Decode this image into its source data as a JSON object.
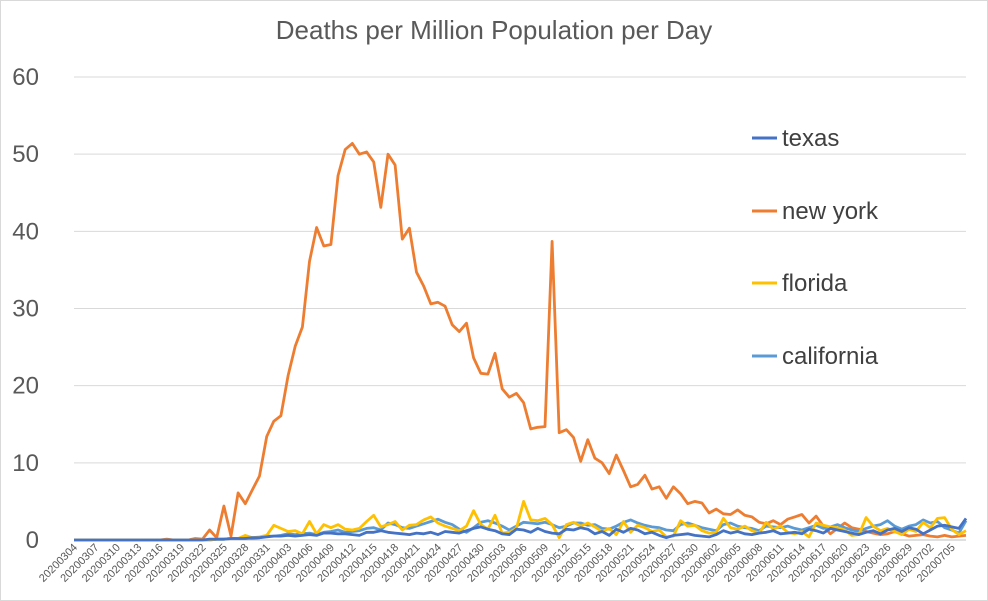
{
  "chart_data": {
    "type": "line",
    "title": "Deaths per Million Population per Day",
    "xlabel": "",
    "ylabel": "",
    "ylim": [
      0,
      60
    ],
    "yticks": [
      0,
      10,
      20,
      30,
      40,
      50,
      60
    ],
    "grid": "horizontal",
    "legend_position": "right",
    "x": [
      "20200304",
      "20200305",
      "20200306",
      "20200307",
      "20200308",
      "20200309",
      "20200310",
      "20200311",
      "20200312",
      "20200313",
      "20200314",
      "20200315",
      "20200316",
      "20200317",
      "20200318",
      "20200319",
      "20200320",
      "20200321",
      "20200322",
      "20200323",
      "20200324",
      "20200325",
      "20200326",
      "20200327",
      "20200328",
      "20200329",
      "20200330",
      "20200331",
      "20200401",
      "20200402",
      "20200403",
      "20200404",
      "20200405",
      "20200406",
      "20200407",
      "20200408",
      "20200409",
      "20200410",
      "20200411",
      "20200412",
      "20200413",
      "20200414",
      "20200415",
      "20200416",
      "20200417",
      "20200418",
      "20200419",
      "20200420",
      "20200421",
      "20200422",
      "20200423",
      "20200424",
      "20200425",
      "20200426",
      "20200427",
      "20200428",
      "20200429",
      "20200430",
      "20200501",
      "20200502",
      "20200503",
      "20200504",
      "20200505",
      "20200506",
      "20200507",
      "20200508",
      "20200509",
      "20200510",
      "20200511",
      "20200512",
      "20200513",
      "20200514",
      "20200515",
      "20200516",
      "20200517",
      "20200518",
      "20200519",
      "20200520",
      "20200521",
      "20200522",
      "20200523",
      "20200524",
      "20200525",
      "20200526",
      "20200527",
      "20200528",
      "20200529",
      "20200530",
      "20200531",
      "20200601",
      "20200602",
      "20200603",
      "20200604",
      "20200605",
      "20200606",
      "20200607",
      "20200608",
      "20200609",
      "20200610",
      "20200611",
      "20200612",
      "20200613",
      "20200614",
      "20200615",
      "20200616",
      "20200617",
      "20200618",
      "20200619",
      "20200620",
      "20200621",
      "20200622",
      "20200623",
      "20200624",
      "20200625",
      "20200626",
      "20200627",
      "20200628",
      "20200629",
      "20200630",
      "20200701",
      "20200702",
      "20200703",
      "20200704",
      "20200705",
      "20200706",
      "20200707"
    ],
    "xtick_labels": [
      "20200304",
      "20200307",
      "20200310",
      "20200313",
      "20200316",
      "20200319",
      "20200322",
      "20200325",
      "20200328",
      "20200331",
      "20200403",
      "20200406",
      "20200409",
      "20200412",
      "20200415",
      "20200418",
      "20200421",
      "20200424",
      "20200427",
      "20200430",
      "20200503",
      "20200506",
      "20200509",
      "20200512",
      "20200515",
      "20200518",
      "20200521",
      "20200524",
      "20200527",
      "20200530",
      "20200602",
      "20200605",
      "20200608",
      "20200611",
      "20200614",
      "20200617",
      "20200620",
      "20200623",
      "20200626",
      "20200629",
      "20200702",
      "20200705"
    ],
    "series": [
      {
        "name": "texas",
        "color": "#4472c4",
        "values": [
          0,
          0,
          0,
          0,
          0,
          0,
          0,
          0,
          0,
          0,
          0,
          0,
          0,
          0,
          0,
          0,
          0,
          0,
          0,
          0.1,
          0.1,
          0.1,
          0.2,
          0.2,
          0.2,
          0.3,
          0.3,
          0.4,
          0.5,
          0.5,
          0.6,
          0.5,
          0.6,
          0.7,
          0.6,
          0.9,
          0.9,
          0.8,
          0.8,
          0.7,
          0.6,
          1.0,
          1.0,
          1.2,
          1.0,
          0.9,
          0.8,
          0.7,
          0.9,
          0.8,
          1.0,
          0.7,
          1.1,
          1.0,
          0.9,
          1.2,
          1.5,
          1.7,
          1.4,
          1.2,
          0.8,
          0.7,
          1.4,
          1.3,
          1.0,
          1.5,
          1.1,
          0.9,
          0.8,
          1.4,
          1.3,
          1.6,
          1.4,
          0.8,
          1.1,
          0.6,
          1.4,
          1.0,
          1.5,
          1.3,
          0.8,
          1.0,
          0.6,
          0.3,
          0.6,
          0.7,
          0.8,
          0.6,
          0.5,
          0.4,
          0.7,
          1.2,
          0.9,
          1.1,
          0.8,
          0.7,
          0.9,
          1.0,
          1.2,
          0.8,
          0.9,
          1.0,
          0.8,
          1.4,
          1.2,
          0.9,
          1.5,
          1.3,
          1.1,
          0.9,
          0.7,
          1.0,
          1.2,
          0.8,
          1.3,
          1.5,
          1.1,
          1.6,
          1.4,
          0.8,
          1.3,
          1.8,
          1.9,
          1.7,
          1.5,
          2.8
        ]
      },
      {
        "name": "new york",
        "color": "#ed7d31",
        "values": [
          0,
          0,
          0,
          0,
          0,
          0,
          0,
          0,
          0,
          0,
          0,
          0,
          0,
          0.1,
          0,
          0,
          0,
          0.2,
          0.1,
          1.3,
          0.3,
          4.4,
          0.5,
          6.1,
          4.7,
          6.5,
          8.3,
          13.4,
          15.4,
          16.1,
          21.3,
          25.1,
          27.6,
          36.1,
          40.5,
          38.1,
          38.3,
          47.2,
          50.6,
          51.4,
          50.0,
          50.3,
          49.0,
          43.1,
          50.0,
          48.6,
          39.0,
          40.4,
          34.7,
          32.9,
          30.6,
          30.8,
          30.3,
          27.9,
          27.0,
          28.1,
          23.6,
          21.6,
          21.5,
          24.2,
          19.6,
          18.5,
          19.0,
          17.8,
          14.4,
          14.6,
          14.7,
          38.7,
          13.9,
          14.3,
          13.3,
          10.2,
          13.0,
          10.6,
          10.0,
          8.6,
          11.0,
          9.0,
          6.9,
          7.2,
          8.4,
          6.6,
          6.9,
          5.4,
          6.9,
          6.0,
          4.7,
          5.0,
          4.8,
          3.5,
          4.0,
          3.4,
          3.3,
          3.9,
          3.2,
          3.0,
          2.3,
          2.1,
          2.5,
          2.0,
          2.7,
          3.0,
          3.3,
          2.2,
          3.1,
          1.8,
          0.8,
          1.5,
          2.2,
          1.6,
          1.4,
          1.1,
          0.9,
          0.7,
          0.8,
          1.1,
          0.8,
          0.5,
          0.6,
          0.7,
          0.5,
          0.4,
          0.6,
          0.4,
          0.5,
          0.6
        ]
      },
      {
        "name": "florida",
        "color": "#ffc000",
        "values": [
          0,
          0,
          0,
          0,
          0,
          0,
          0,
          0,
          0,
          0,
          0,
          0,
          0,
          0,
          0,
          0,
          0,
          0,
          0,
          0,
          0.1,
          0.1,
          0.2,
          0.2,
          0.6,
          0.3,
          0.4,
          0.6,
          1.9,
          1.5,
          1.1,
          1.2,
          0.8,
          2.4,
          0.8,
          2.0,
          1.6,
          2.0,
          1.4,
          1.3,
          1.5,
          2.4,
          3.2,
          1.7,
          2.0,
          2.4,
          1.3,
          1.9,
          2.0,
          2.6,
          3.0,
          2.2,
          1.8,
          1.5,
          1.2,
          1.8,
          3.8,
          2.0,
          1.4,
          3.2,
          0.9,
          1.0,
          1.5,
          5.0,
          2.6,
          2.5,
          2.8,
          2.0,
          0.3,
          2.0,
          2.3,
          1.8,
          2.2,
          1.7,
          1.1,
          1.5,
          0.7,
          2.4,
          1.0,
          1.9,
          1.6,
          1.1,
          1.3,
          0.4,
          0.5,
          2.5,
          1.8,
          1.9,
          1.2,
          0.9,
          1.0,
          2.8,
          1.6,
          1.4,
          1.8,
          1.2,
          0.9,
          2.3,
          1.4,
          1.8,
          1.0,
          0.8,
          1.1,
          0.4,
          2.2,
          1.9,
          1.7,
          1.6,
          1.3,
          0.6,
          0.7,
          2.9,
          1.8,
          1.2,
          1.5,
          1.1,
          0.7,
          1.4,
          1.1,
          2.3,
          1.6,
          2.8,
          2.9,
          1.4,
          0.7,
          1.2
        ]
      },
      {
        "name": "california",
        "color": "#5b9bd5",
        "values": [
          0,
          0,
          0,
          0,
          0,
          0,
          0,
          0,
          0,
          0,
          0,
          0,
          0,
          0,
          0,
          0,
          0,
          0,
          0,
          0,
          0.1,
          0.1,
          0.2,
          0.2,
          0.3,
          0.2,
          0.3,
          0.5,
          0.5,
          0.6,
          0.8,
          0.7,
          0.8,
          0.9,
          0.7,
          1.0,
          1.1,
          1.3,
          1.0,
          1.1,
          1.2,
          1.5,
          1.6,
          1.3,
          2.2,
          2.0,
          1.6,
          1.5,
          1.8,
          2.1,
          2.4,
          2.7,
          2.3,
          2.0,
          1.4,
          1.0,
          1.6,
          2.3,
          2.5,
          2.2,
          1.8,
          1.3,
          1.8,
          2.3,
          2.2,
          2.1,
          2.3,
          2.0,
          1.6,
          1.8,
          2.2,
          2.2,
          1.9,
          2.0,
          1.5,
          1.4,
          1.8,
          2.3,
          2.6,
          2.2,
          1.9,
          1.7,
          1.6,
          1.3,
          1.2,
          2.0,
          2.2,
          1.9,
          1.6,
          1.4,
          1.2,
          2.0,
          2.2,
          1.8,
          1.6,
          1.5,
          1.2,
          1.8,
          1.7,
          1.6,
          1.8,
          1.5,
          1.3,
          1.6,
          1.9,
          1.5,
          1.7,
          2.0,
          1.6,
          1.3,
          1.1,
          1.5,
          1.8,
          2.0,
          2.5,
          1.8,
          1.4,
          1.8,
          2.0,
          2.6,
          2.2,
          2.4,
          1.6,
          1.3,
          0.9,
          2.5
        ]
      }
    ]
  }
}
